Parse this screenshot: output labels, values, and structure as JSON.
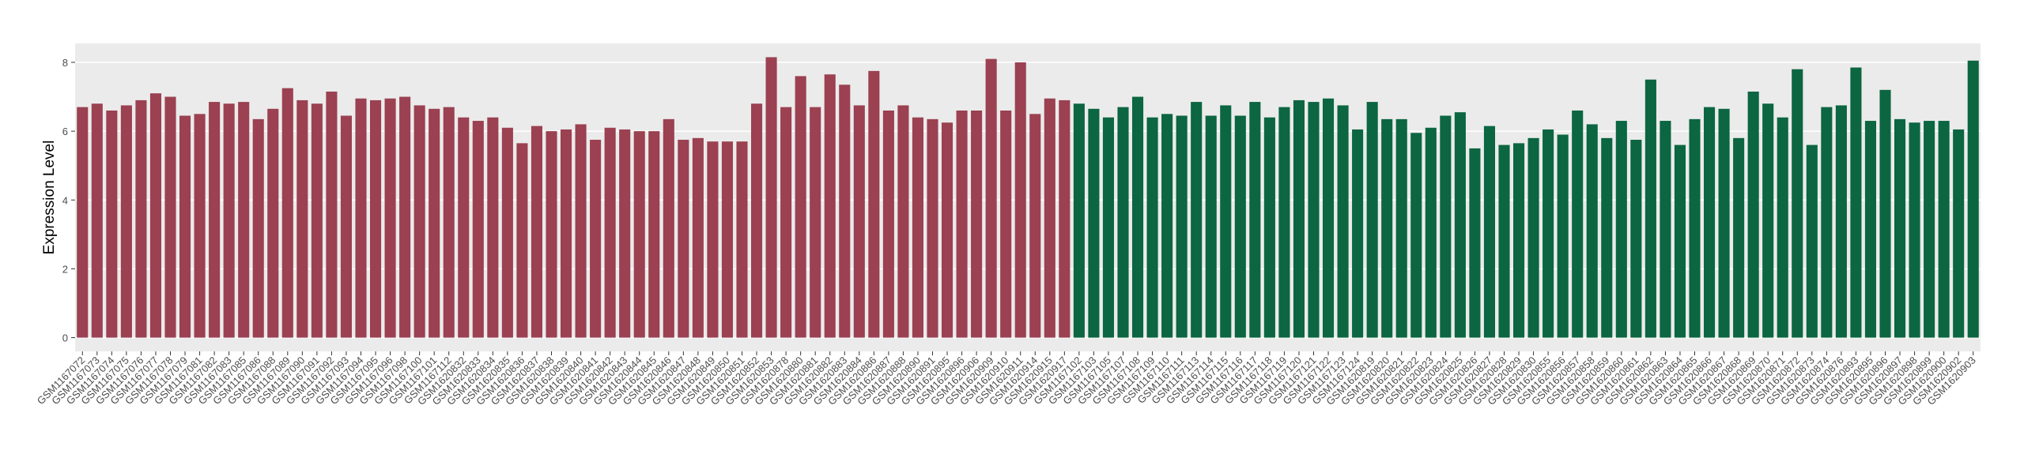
{
  "chart_data": {
    "type": "bar",
    "y_label": "Expression Level",
    "categories": [
      "GSM1167072",
      "GSM1167073",
      "GSM1167074",
      "GSM1167075",
      "GSM1167076",
      "GSM1167077",
      "GSM1167078",
      "GSM1167079",
      "GSM1167081",
      "GSM1167082",
      "GSM1167083",
      "GSM1167085",
      "GSM1167086",
      "GSM1167088",
      "GSM1167089",
      "GSM1167090",
      "GSM1167091",
      "GSM1167092",
      "GSM1167093",
      "GSM1167094",
      "GSM1167095",
      "GSM1167096",
      "GSM1167098",
      "GSM1167100",
      "GSM1167101",
      "GSM1167112",
      "GSM1620832",
      "GSM1620833",
      "GSM1620834",
      "GSM1620835",
      "GSM1620836",
      "GSM1620837",
      "GSM1620838",
      "GSM1620839",
      "GSM1620840",
      "GSM1620841",
      "GSM1620842",
      "GSM1620843",
      "GSM1620844",
      "GSM1620845",
      "GSM1620846",
      "GSM1620847",
      "GSM1620848",
      "GSM1620849",
      "GSM1620850",
      "GSM1620851",
      "GSM1620852",
      "GSM1620853",
      "GSM1620878",
      "GSM1620880",
      "GSM1620881",
      "GSM1620882",
      "GSM1620883",
      "GSM1620884",
      "GSM1620886",
      "GSM1620887",
      "GSM1620888",
      "GSM1620890",
      "GSM1620891",
      "GSM1620895",
      "GSM1620896",
      "GSM1620906",
      "GSM1620909",
      "GSM1620910",
      "GSM1620911",
      "GSM1620914",
      "GSM1620915",
      "GSM1620917",
      "GSM1167102",
      "GSM1167103",
      "GSM1167105",
      "GSM1167107",
      "GSM1167108",
      "GSM1167109",
      "GSM1167110",
      "GSM1167111",
      "GSM1167113",
      "GSM1167114",
      "GSM1167115",
      "GSM1167116",
      "GSM1167117",
      "GSM1167118",
      "GSM1167119",
      "GSM1167120",
      "GSM1167121",
      "GSM1167122",
      "GSM1167123",
      "GSM1167124",
      "GSM1620819",
      "GSM1620820",
      "GSM1620821",
      "GSM1620822",
      "GSM1620823",
      "GSM1620824",
      "GSM1620825",
      "GSM1620826",
      "GSM1620827",
      "GSM1620828",
      "GSM1620829",
      "GSM1620830",
      "GSM1620855",
      "GSM1620856",
      "GSM1620857",
      "GSM1620858",
      "GSM1620859",
      "GSM1620860",
      "GSM1620861",
      "GSM1620862",
      "GSM1620863",
      "GSM1620864",
      "GSM1620865",
      "GSM1620866",
      "GSM1620867",
      "GSM1620868",
      "GSM1620869",
      "GSM1620870",
      "GSM1620871",
      "GSM1620872",
      "GSM1620873",
      "GSM1620874",
      "GSM1620876",
      "GSM1620893",
      "GSM1620895",
      "GSM1620896",
      "GSM1620897",
      "GSM1620898",
      "GSM1620899",
      "GSM1620900",
      "GSM1620902",
      "GSM1620903"
    ],
    "series": [
      {
        "color": "#9b4151",
        "values": [
          6.7,
          6.8,
          6.6,
          6.75,
          6.9,
          7.1,
          7.0,
          6.45,
          6.5,
          6.85,
          6.8,
          6.85,
          6.35,
          6.65,
          7.25,
          6.9,
          6.8,
          7.15,
          6.45,
          6.95,
          6.9,
          6.95,
          7.0,
          6.75,
          6.65,
          6.7,
          6.4,
          6.3,
          6.4,
          6.1,
          5.65,
          6.15,
          6.0,
          6.05,
          6.2,
          5.75,
          6.1,
          6.05,
          6.0,
          6.0,
          6.35,
          5.75,
          5.8,
          5.7,
          5.7,
          5.7,
          6.8,
          8.15,
          6.7,
          7.6,
          6.7,
          7.65,
          7.35,
          6.75,
          7.75,
          6.6,
          6.75,
          6.4,
          6.35,
          6.25,
          6.6,
          6.6,
          8.1,
          6.6,
          8.0,
          6.5,
          6.95,
          6.9,
          null,
          null,
          null,
          null,
          null,
          null,
          null,
          null,
          null,
          null,
          null,
          null,
          null,
          null,
          null,
          null,
          null,
          null,
          null,
          null,
          null,
          null,
          null,
          null,
          null,
          null,
          null,
          null,
          null,
          null,
          null,
          null,
          null,
          null,
          null,
          null,
          null,
          null,
          null,
          null,
          null,
          null,
          null,
          null,
          null,
          null,
          null,
          null,
          null,
          null,
          null,
          null,
          null,
          null,
          null,
          null,
          null,
          null,
          null,
          null,
          null,
          null
        ]
      },
      {
        "color": "#0b6641",
        "values": [
          null,
          null,
          null,
          null,
          null,
          null,
          null,
          null,
          null,
          null,
          null,
          null,
          null,
          null,
          null,
          null,
          null,
          null,
          null,
          null,
          null,
          null,
          null,
          null,
          null,
          null,
          null,
          null,
          null,
          null,
          null,
          null,
          null,
          null,
          null,
          null,
          null,
          null,
          null,
          null,
          null,
          null,
          null,
          null,
          null,
          null,
          null,
          null,
          null,
          null,
          null,
          null,
          null,
          null,
          null,
          null,
          null,
          null,
          null,
          null,
          null,
          null,
          null,
          null,
          null,
          null,
          null,
          null,
          6.8,
          6.65,
          6.4,
          6.7,
          7.0,
          6.4,
          6.5,
          6.45,
          6.85,
          6.45,
          6.75,
          6.45,
          6.85,
          6.4,
          6.7,
          6.9,
          6.85,
          6.95,
          6.75,
          6.05,
          6.85,
          6.35,
          6.35,
          5.95,
          6.1,
          6.45,
          6.55,
          5.5,
          6.15,
          5.6,
          5.65,
          5.8,
          6.05,
          5.9,
          6.6,
          6.2,
          5.8,
          6.3,
          5.75,
          7.5,
          6.3,
          5.6,
          6.35,
          6.7,
          6.65,
          5.8,
          7.15,
          6.8,
          6.4,
          7.8,
          5.6,
          6.7,
          6.75,
          7.85,
          6.3,
          7.2,
          6.35,
          6.25,
          6.3,
          6.3,
          6.05,
          8.05
        ]
      }
    ],
    "ylim": [
      -0.4,
      8.55
    ],
    "yticks": [
      0,
      2,
      4,
      6,
      8
    ],
    "grid": true
  }
}
